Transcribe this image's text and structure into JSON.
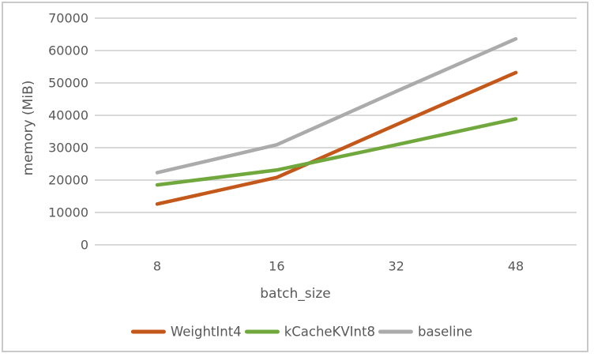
{
  "frame": {
    "background": "#ffffff",
    "border_color": "#c9c9c9"
  },
  "chart_data": {
    "type": "line",
    "title": "",
    "xlabel": "batch_size",
    "ylabel": "memory (MiB)",
    "categories": [
      "8",
      "16",
      "32",
      "48"
    ],
    "series": [
      {
        "name": "WeightInt4",
        "color": "#c4571a",
        "values": [
          12600,
          20800,
          37100,
          53200
        ]
      },
      {
        "name": "kCacheKVInt8",
        "color": "#70a83d",
        "values": [
          18500,
          23100,
          30900,
          38900
        ]
      },
      {
        "name": "baseline",
        "color": "#ababab",
        "values": [
          22300,
          30900,
          47400,
          63600
        ]
      }
    ],
    "ylim": [
      0,
      70000
    ],
    "ytick_step": 10000,
    "ytick_labels": [
      "0",
      "10000",
      "20000",
      "30000",
      "40000",
      "50000",
      "60000",
      "70000"
    ],
    "grid": "horizontal",
    "gridline_color": "#d9d9d9",
    "text_color": "#595959",
    "line_width": 4.5,
    "legend_position": "bottom"
  }
}
